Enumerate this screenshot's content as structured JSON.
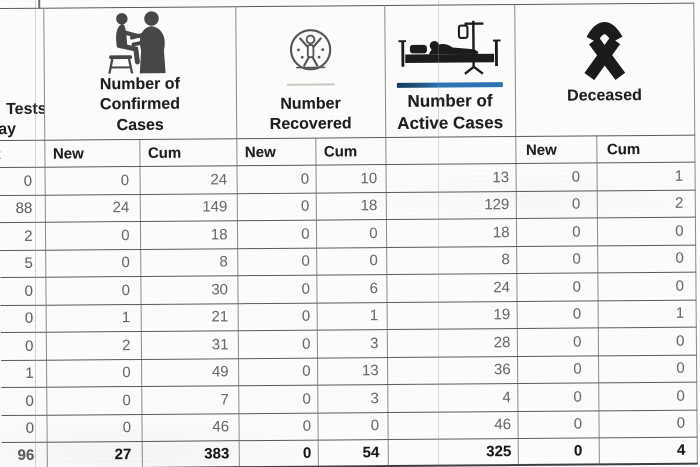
{
  "header": {
    "tests_col": {
      "line1": "Tests",
      "line2": "ay"
    },
    "confirmed": {
      "title": "Number of\nConfirmed\nCases",
      "icon": "doctor-examining-patient-icon"
    },
    "recovered": {
      "title": "Number\nRecovered",
      "icon": "recovered-person-icon"
    },
    "active": {
      "title": "Number of\nActive Cases",
      "icon": "hospital-bed-icon"
    },
    "deceased": {
      "title": "Deceased",
      "icon": "mourning-ribbon-icon"
    }
  },
  "subheader": {
    "new": "New",
    "cum": "Cum",
    "tests_fragment": "t"
  },
  "columns": [
    "tests",
    "confirmed_new",
    "confirmed_cum",
    "recovered_new",
    "recovered_cum",
    "active_cases",
    "deceased_new",
    "deceased_cum"
  ],
  "rows": [
    {
      "cells": [
        "0",
        "0",
        "24",
        "0",
        "10",
        "13",
        "0",
        "1"
      ]
    },
    {
      "cells": [
        "88",
        "24",
        "149",
        "0",
        "18",
        "129",
        "0",
        "2"
      ]
    },
    {
      "cells": [
        "2",
        "0",
        "18",
        "0",
        "0",
        "18",
        "0",
        "0"
      ]
    },
    {
      "cells": [
        "5",
        "0",
        "8",
        "0",
        "0",
        "8",
        "0",
        "0"
      ]
    },
    {
      "cells": [
        "0",
        "0",
        "30",
        "0",
        "6",
        "24",
        "0",
        "0"
      ]
    },
    {
      "cells": [
        "0",
        "1",
        "21",
        "0",
        "1",
        "19",
        "0",
        "1"
      ]
    },
    {
      "cells": [
        "0",
        "2",
        "31",
        "0",
        "3",
        "28",
        "0",
        "0"
      ]
    },
    {
      "cells": [
        "1",
        "0",
        "49",
        "0",
        "13",
        "36",
        "0",
        "0"
      ]
    },
    {
      "cells": [
        "0",
        "0",
        "7",
        "0",
        "3",
        "4",
        "0",
        "0"
      ]
    },
    {
      "cells": [
        "0",
        "0",
        "46",
        "0",
        "0",
        "46",
        "0",
        "0"
      ]
    }
  ],
  "totals": {
    "cells": [
      "96",
      "27",
      "383",
      "0",
      "54",
      "325",
      "0",
      "4"
    ]
  },
  "colors": {
    "accent_blue": "#2e74b5",
    "guide_line": "#8fa8d6",
    "grid_line": "#5a5a5a"
  }
}
